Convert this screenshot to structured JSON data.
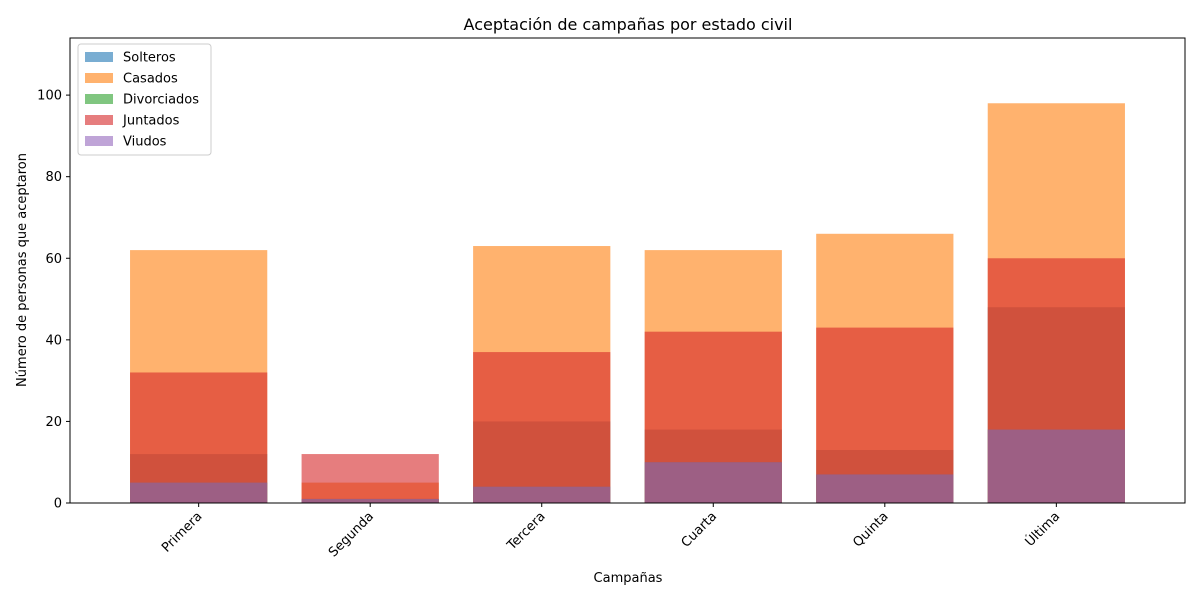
{
  "chart_data": {
    "type": "bar",
    "title": "Aceptación de campañas por estado civil",
    "xlabel": "Campañas",
    "ylabel": "Número de personas que aceptaron",
    "categories": [
      "Primera",
      "Segunda",
      "Tercera",
      "Cuarta",
      "Quinta",
      "Última"
    ],
    "ylim": [
      0,
      114
    ],
    "yticks": [
      0,
      20,
      40,
      60,
      80,
      100
    ],
    "grid": false,
    "legend_position": "top-left",
    "bar_mode": "overlaid",
    "opacity": 0.6,
    "series": [
      {
        "name": "Solteros",
        "color": "#1f77b4",
        "values": [
          12,
          1,
          20,
          18,
          13,
          48
        ]
      },
      {
        "name": "Casados",
        "color": "#ff7f0e",
        "values": [
          62,
          5,
          63,
          62,
          66,
          98
        ]
      },
      {
        "name": "Divorciados",
        "color": "#2ca02c",
        "values": [
          5,
          1,
          4,
          10,
          7,
          18
        ]
      },
      {
        "name": "Juntados",
        "color": "#d62728",
        "values": [
          32,
          12,
          37,
          42,
          43,
          60
        ]
      },
      {
        "name": "Viudos",
        "color": "#9467bd",
        "values": [
          5,
          1,
          4,
          10,
          7,
          18
        ]
      }
    ]
  }
}
